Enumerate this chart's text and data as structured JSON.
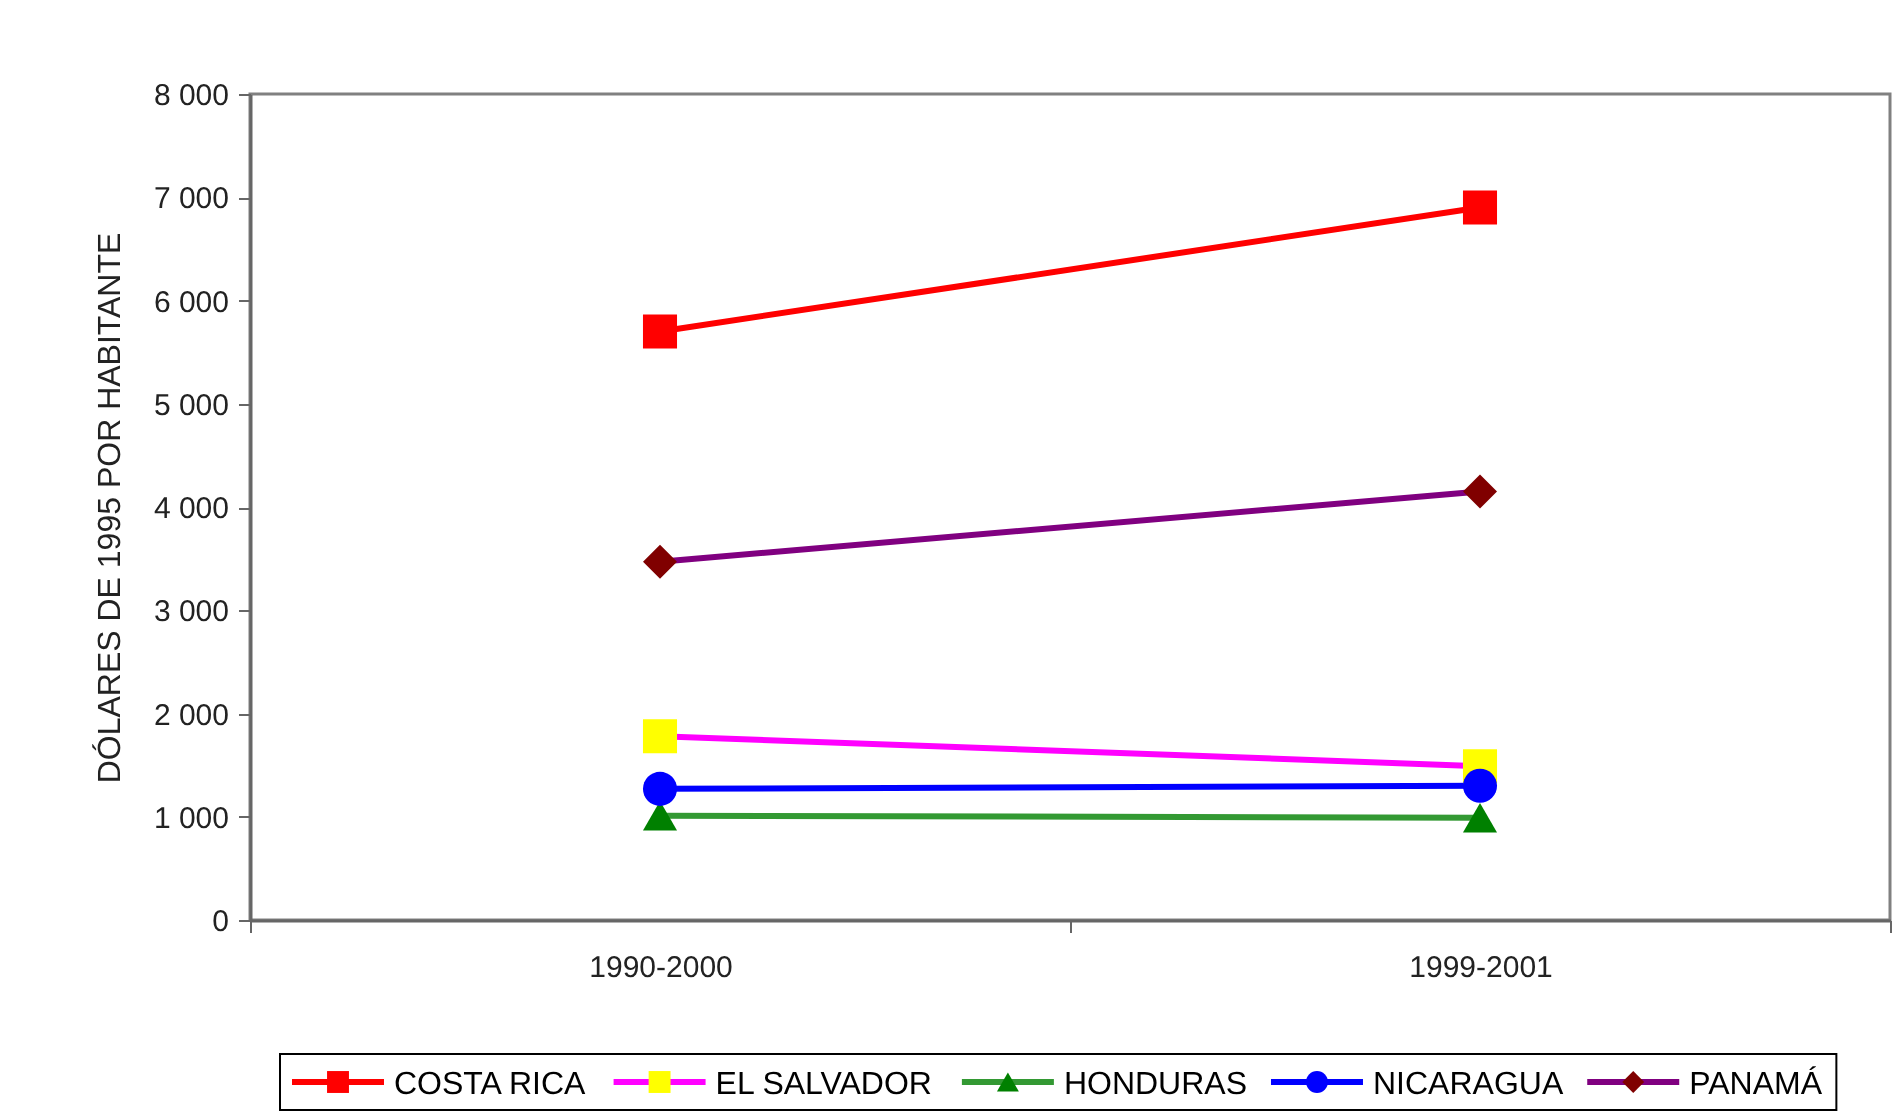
{
  "chart_data": {
    "type": "line",
    "ylabel": "DÓLARES DE 1995 POR HABITANTE",
    "categories": [
      "1990-2000",
      "1999-2001"
    ],
    "series": [
      {
        "name": "COSTA RICA",
        "color": "#ff0000",
        "colors": [
          "#ff0000",
          "#ff0000"
        ],
        "marker": "square",
        "values": [
          5700,
          6900
        ]
      },
      {
        "name": "EL SALVADOR",
        "color": "#ff00ff",
        "colors": [
          "#ffff00",
          "#ffff00"
        ],
        "marker": "square",
        "values": [
          1780,
          1490
        ]
      },
      {
        "name": "HONDURAS",
        "color": "#339933",
        "colors": [
          "#008000",
          "#008000"
        ],
        "marker": "triangle",
        "values": [
          1010,
          990
        ]
      },
      {
        "name": "NICARAGUA",
        "color": "#0000ff",
        "colors": [
          "#0000ff",
          "#0000ff"
        ],
        "marker": "circle",
        "values": [
          1270,
          1300
        ]
      },
      {
        "name": "PANAMÁ",
        "color": "#800080",
        "colors": [
          "#800000",
          "#800000"
        ],
        "marker": "diamond",
        "values": [
          3470,
          4150
        ]
      }
    ],
    "ylim": [
      0,
      8000
    ],
    "yticks": [
      0,
      {
        "value": 1000,
        "label": "1 000"
      },
      {
        "value": 2000,
        "label": "2 000"
      },
      {
        "value": 3000,
        "label": "3 000"
      },
      {
        "value": 4000,
        "label": "4 000"
      },
      {
        "value": 5000,
        "label": "5 000"
      },
      {
        "value": 6000,
        "label": "6 000"
      },
      {
        "value": 7000,
        "label": "7 000"
      },
      {
        "value": 8000,
        "label": "8 000"
      }
    ],
    "grid": false,
    "legend": "bottom",
    "line_style": "solid"
  }
}
